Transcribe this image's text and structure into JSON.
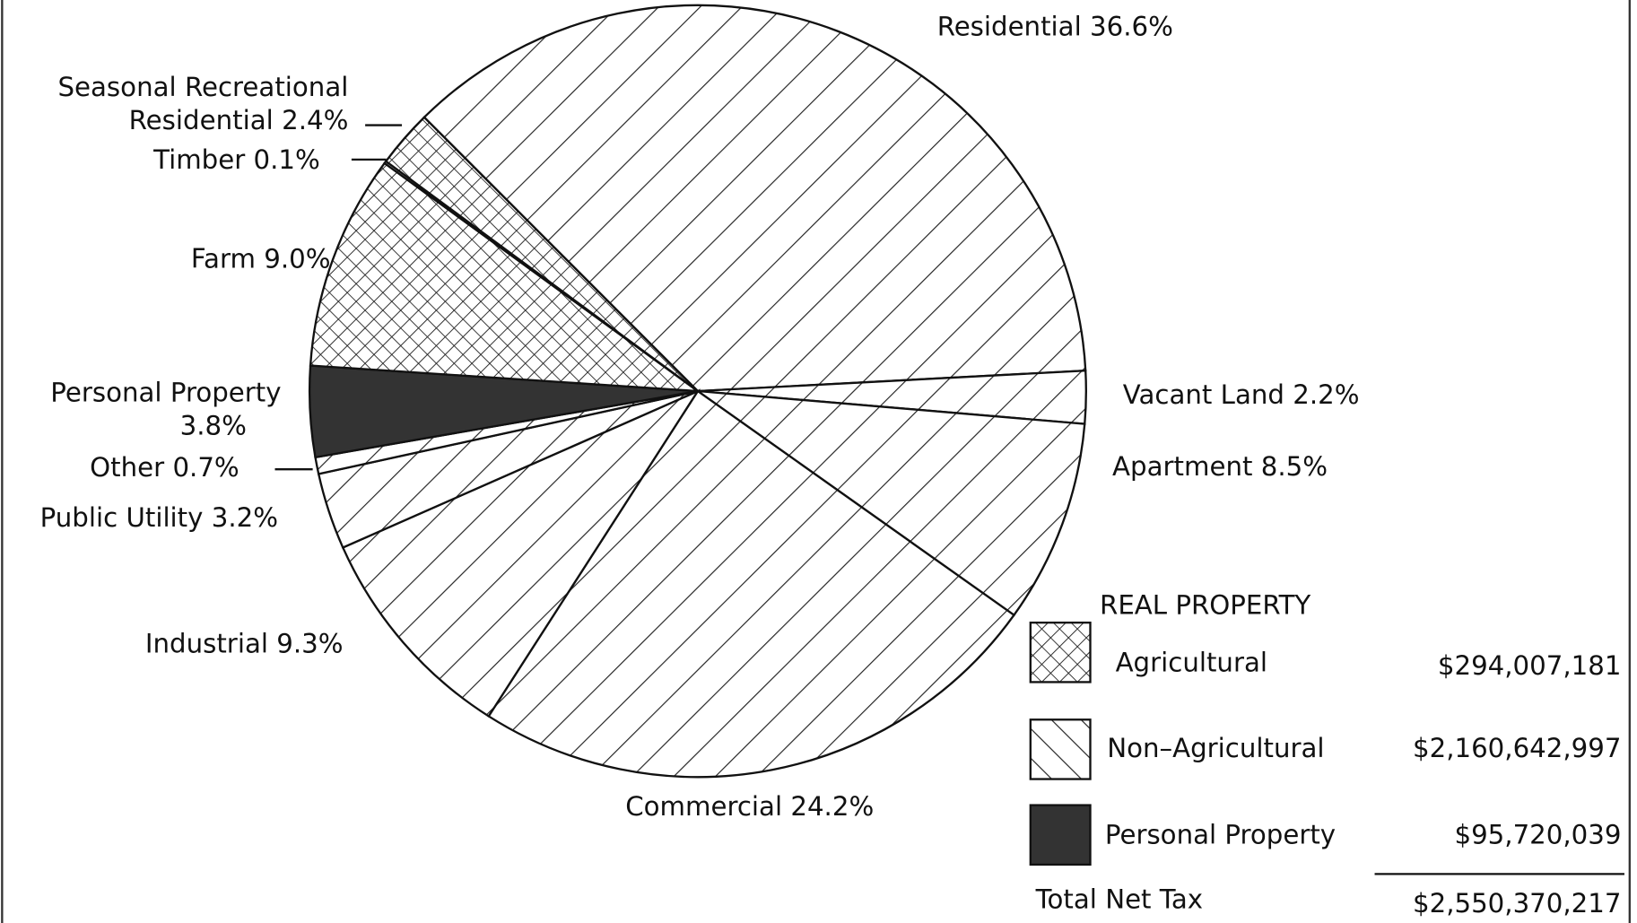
{
  "chart_data": {
    "type": "pie",
    "categories": [
      "Residential",
      "Vacant Land",
      "Apartment",
      "Commercial",
      "Industrial",
      "Public Utility",
      "Other",
      "Personal Property",
      "Farm",
      "Timber",
      "Seasonal Recreational Residential"
    ],
    "values": [
      36.6,
      2.2,
      8.5,
      24.2,
      9.3,
      3.2,
      0.7,
      3.8,
      9.0,
      0.1,
      2.4
    ],
    "value_labels": [
      "36.6%",
      "2.2%",
      "8.5%",
      "24.2%",
      "9.3%",
      "3.2%",
      "0.7%",
      "3.8%",
      "9.0%",
      "0.1%",
      "2.4%"
    ],
    "fills": [
      "hatch",
      "hatch",
      "hatch",
      "hatch",
      "hatch",
      "hatch",
      "hatch",
      "solid",
      "cross",
      "cross",
      "cross"
    ],
    "legend": {
      "title": "REAL PROPERTY",
      "items": [
        {
          "label": "Agricultural",
          "amount": "$294,007,181",
          "fill": "cross"
        },
        {
          "label": "Non–Agricultural",
          "amount": "$2,160,642,997",
          "fill": "hatch"
        },
        {
          "label": "Personal Property",
          "amount": "$95,720,039",
          "fill": "solid"
        }
      ],
      "total": {
        "label": "Total Net Tax",
        "amount": "$2,550,370,217"
      }
    }
  }
}
